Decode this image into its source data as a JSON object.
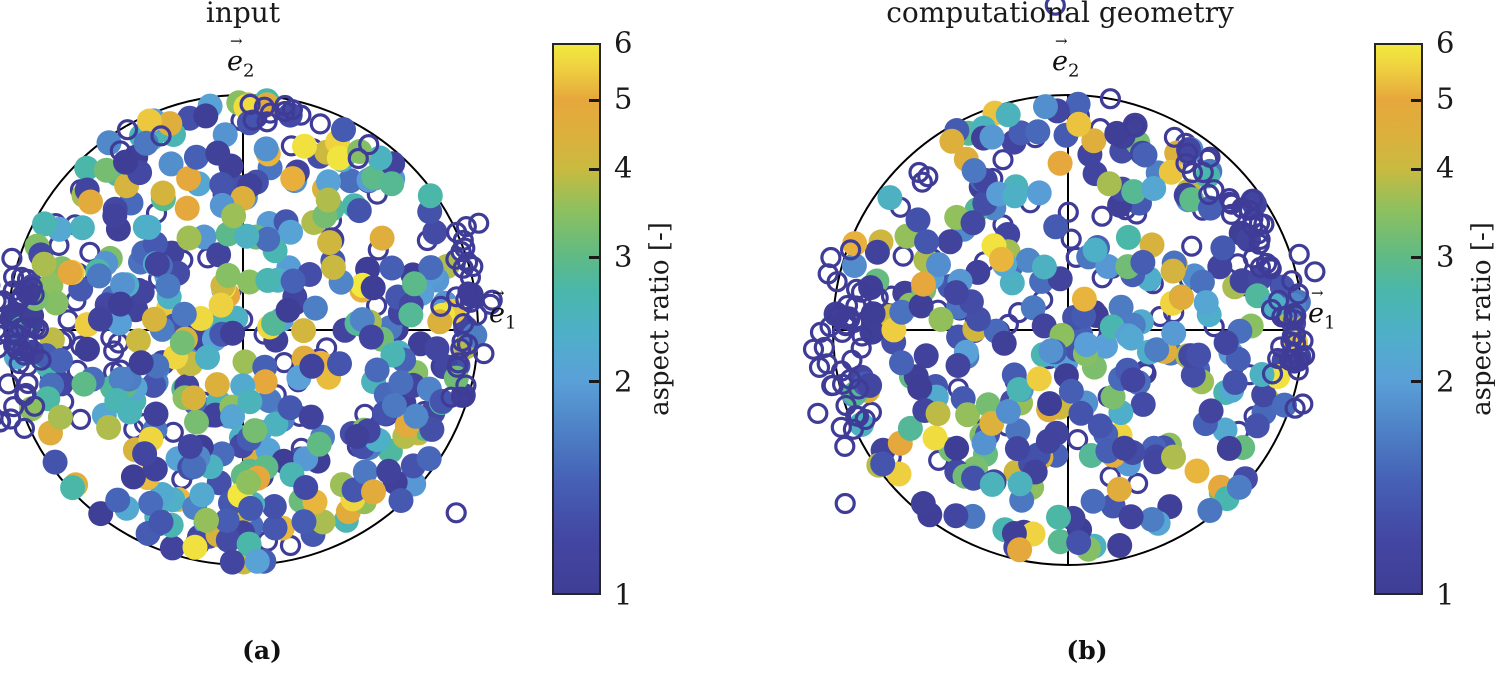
{
  "figure": {
    "background": "#ffffff"
  },
  "chart_data": [
    {
      "id": "a",
      "type": "scatter",
      "projection": "pole-figure-disk",
      "title": "input",
      "caption": "(a)",
      "axis_labels": {
        "up": {
          "base": "e",
          "sub": "2",
          "arrow": "→"
        },
        "right": {
          "base": "e",
          "sub": "1",
          "arrow": "→"
        }
      },
      "colorbar": {
        "label": "aspect ratio [-]",
        "scale": "log",
        "min": 1,
        "max": 6,
        "ticks": [
          1,
          2,
          3,
          4,
          5,
          6
        ],
        "inner_ticks": [
          2,
          3,
          4,
          5
        ]
      },
      "markers": {
        "filled": {
          "count": 430,
          "diameter": 25,
          "value_bias": 1.35,
          "seed": 20231
        },
        "open": {
          "count": 160,
          "color": "#3f3c98",
          "diameter": 18,
          "stroke": 3.2,
          "seed": 911,
          "clusters": [
            {
              "type": "gauss",
              "x": -0.97,
              "y": -0.05,
              "sx": 0.07,
              "sy": 0.22,
              "n": 45,
              "z": "over"
            },
            {
              "type": "gauss",
              "x": 0.96,
              "y": 0.03,
              "sx": 0.06,
              "sy": 0.2,
              "n": 30,
              "z": "over"
            },
            {
              "type": "gauss",
              "x": -0.55,
              "y": 0.25,
              "sx": 0.2,
              "sy": 0.2,
              "n": 16,
              "z": "under"
            },
            {
              "type": "arc",
              "a0": 55,
              "a1": 125,
              "r": 0.93,
              "dr": 0.06,
              "n": 14,
              "z": "over"
            },
            {
              "type": "uniform",
              "n": 55,
              "z": "under"
            }
          ]
        }
      }
    },
    {
      "id": "b",
      "type": "scatter",
      "projection": "pole-figure-disk",
      "title": "computational geometry",
      "caption": "(b)",
      "axis_labels": {
        "up": {
          "base": "e",
          "sub": "2",
          "arrow": "→"
        },
        "right": {
          "base": "e",
          "sub": "1",
          "arrow": "→"
        }
      },
      "colorbar": {
        "label": "aspect ratio [-]",
        "scale": "log",
        "min": 1,
        "max": 6,
        "ticks": [
          1,
          2,
          3,
          4,
          5,
          6
        ],
        "inner_ticks": [
          2,
          3,
          4,
          5
        ]
      },
      "markers": {
        "filled": {
          "count": 330,
          "diameter": 25,
          "value_bias": 1.5,
          "seed": 7713
        },
        "open": {
          "count": 170,
          "color": "#3f3c98",
          "diameter": 18,
          "stroke": 3.2,
          "seed": 4242,
          "clusters": [
            {
              "type": "gauss",
              "x": -0.95,
              "y": -0.08,
              "sx": 0.07,
              "sy": 0.25,
              "n": 40,
              "z": "over"
            },
            {
              "type": "gauss",
              "x": 0.96,
              "y": 0.0,
              "sx": 0.05,
              "sy": 0.2,
              "n": 26,
              "z": "over"
            },
            {
              "type": "arc",
              "a0": 5,
              "a1": 85,
              "r": 0.9,
              "dr": 0.07,
              "n": 28,
              "z": "over"
            },
            {
              "type": "gauss",
              "x": 0.1,
              "y": 0.25,
              "sx": 0.35,
              "sy": 0.3,
              "n": 26,
              "z": "under"
            },
            {
              "type": "uniform",
              "n": 50,
              "z": "under"
            }
          ]
        }
      }
    }
  ],
  "colormap": {
    "name": "parula-like",
    "stops": [
      [
        0.0,
        "#3f3e96"
      ],
      [
        0.1,
        "#4347a2"
      ],
      [
        0.2,
        "#465fb5"
      ],
      [
        0.3,
        "#4e82c6"
      ],
      [
        0.387,
        "#5aa0d8"
      ],
      [
        0.47,
        "#4fafca"
      ],
      [
        0.55,
        "#49b7ab"
      ],
      [
        0.613,
        "#5fba85"
      ],
      [
        0.7,
        "#8ec05e"
      ],
      [
        0.774,
        "#c9ba40"
      ],
      [
        0.84,
        "#ddb03c"
      ],
      [
        0.9,
        "#e6a73c"
      ],
      [
        0.955,
        "#eecf40"
      ],
      [
        1.0,
        "#f2e93f"
      ]
    ]
  },
  "styles": {
    "ring_color": "#3f3c98",
    "line_color": "#000000"
  }
}
